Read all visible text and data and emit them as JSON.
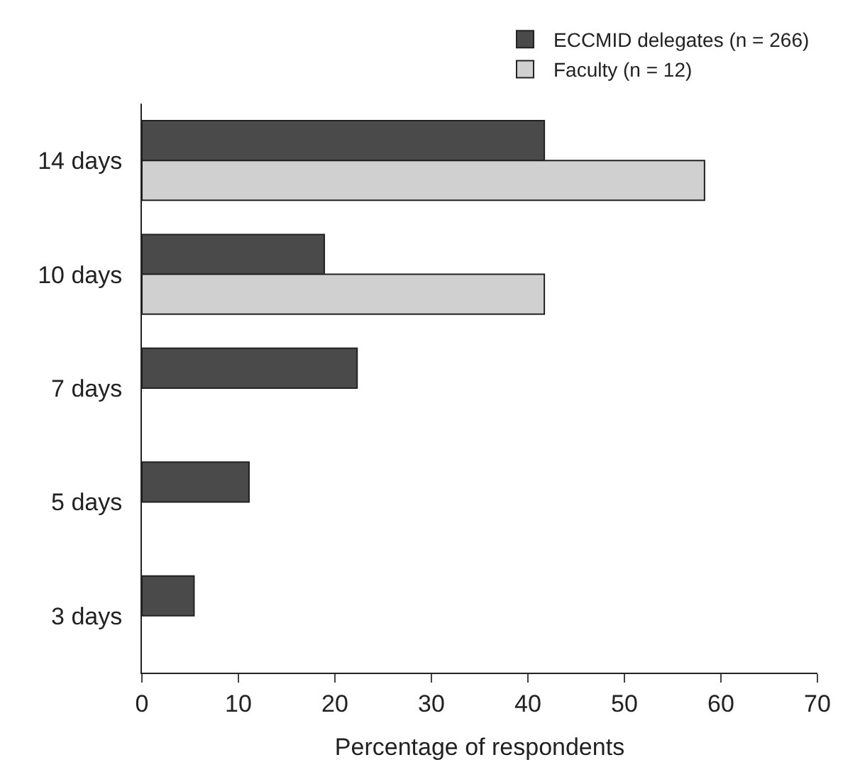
{
  "chart_data": {
    "type": "bar",
    "orientation": "horizontal",
    "xlabel": "Percentage of respondents",
    "categories": [
      "14 days",
      "10 days",
      "7 days",
      "5 days",
      "3 days"
    ],
    "series": [
      {
        "name": "ECCMID delegates (n = 266)",
        "color": "#4a4a4a",
        "values": [
          41.7,
          18.9,
          22.3,
          11.1,
          5.4
        ]
      },
      {
        "name": "Faculty (n = 12)",
        "color": "#d0d0d0",
        "values": [
          58.3,
          41.7,
          null,
          null,
          null
        ]
      }
    ],
    "xlim": [
      0,
      70
    ],
    "xticks": [
      0,
      10,
      20,
      30,
      40,
      50,
      60,
      70
    ],
    "legend": "top right"
  }
}
